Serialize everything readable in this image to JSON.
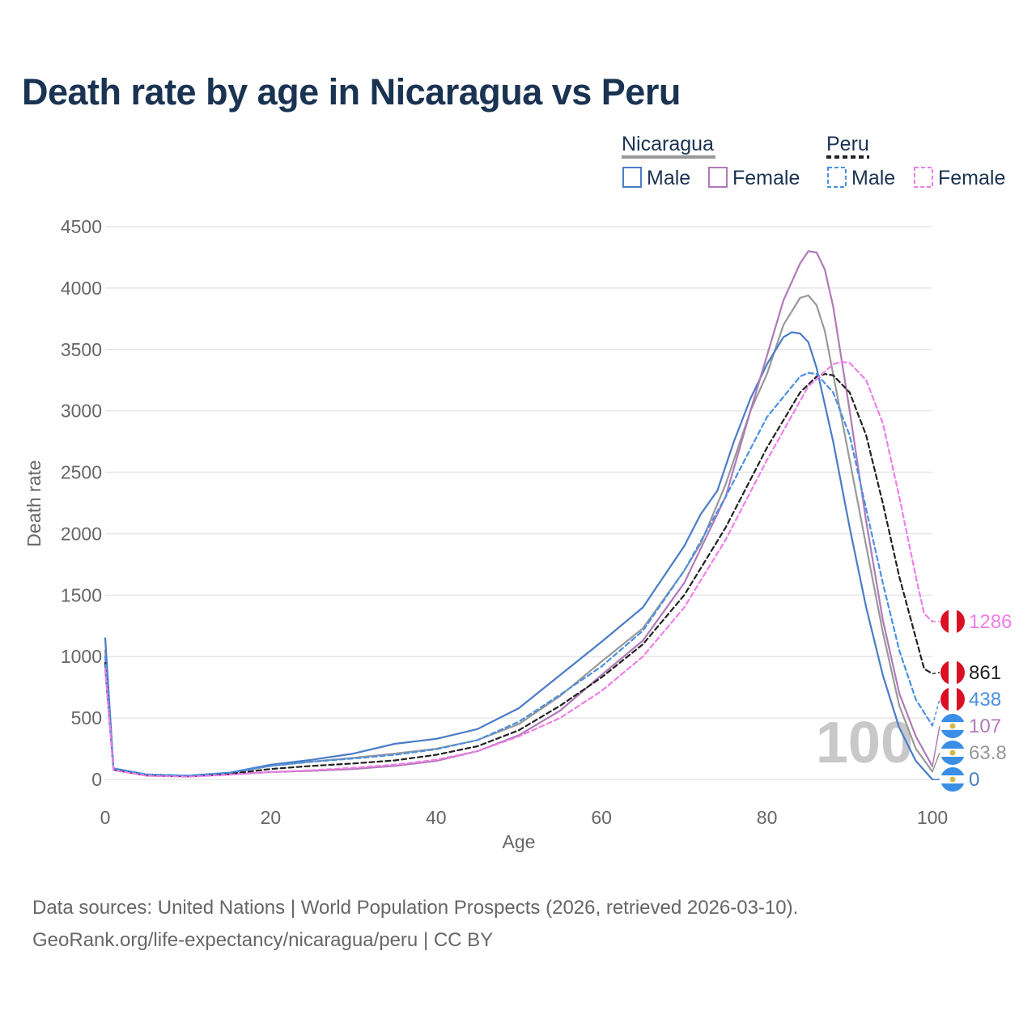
{
  "title": "Death rate by age in Nicaragua vs Peru",
  "footer": {
    "line1": "Data sources: United Nations | World Population Prospects (2026, retrieved 2026-03-10).",
    "line2": "GeoRank.org/life-expectancy/nicaragua/peru | CC BY"
  },
  "legend": {
    "group1": "Nicaragua",
    "group2": "Peru",
    "male": "Male",
    "female": "Female"
  },
  "watermark": "100",
  "colors": {
    "nic_total": "#999999",
    "nic_male": "#4a7cc7",
    "nic_female": "#b07ab8",
    "peru_total": "#222222",
    "peru_male": "#4a90e2",
    "peru_female": "#f07ee8",
    "grid": "#e6e6e6",
    "title": "#1a3352"
  },
  "chart_data": {
    "type": "line",
    "title": "Death rate by age in Nicaragua vs Peru",
    "xlabel": "Age",
    "ylabel": "Death rate",
    "xlim": [
      0,
      100
    ],
    "ylim": [
      0,
      4500
    ],
    "x_ticks": [
      0,
      20,
      40,
      60,
      80,
      100
    ],
    "y_ticks": [
      0,
      500,
      1000,
      1500,
      2000,
      2500,
      3000,
      3500,
      4000,
      4500
    ],
    "series": [
      {
        "name": "Nicaragua",
        "color_key": "nic_total",
        "dash": false,
        "end_label": "63.8",
        "points": [
          [
            0,
            1050
          ],
          [
            1,
            85
          ],
          [
            5,
            35
          ],
          [
            10,
            28
          ],
          [
            15,
            50
          ],
          [
            20,
            110
          ],
          [
            25,
            145
          ],
          [
            30,
            175
          ],
          [
            35,
            210
          ],
          [
            40,
            250
          ],
          [
            45,
            320
          ],
          [
            50,
            450
          ],
          [
            55,
            680
          ],
          [
            60,
            960
          ],
          [
            65,
            1230
          ],
          [
            70,
            1700
          ],
          [
            72,
            1920
          ],
          [
            75,
            2400
          ],
          [
            78,
            3000
          ],
          [
            80,
            3300
          ],
          [
            82,
            3700
          ],
          [
            84,
            3920
          ],
          [
            85,
            3940
          ],
          [
            86,
            3860
          ],
          [
            87,
            3650
          ],
          [
            90,
            2600
          ],
          [
            92,
            1900
          ],
          [
            94,
            1200
          ],
          [
            96,
            600
          ],
          [
            98,
            250
          ],
          [
            100,
            63.8
          ]
        ]
      },
      {
        "name": "Nicaragua Male",
        "color_key": "nic_male",
        "dash": false,
        "end_label": "0",
        "points": [
          [
            0,
            1150
          ],
          [
            1,
            90
          ],
          [
            5,
            40
          ],
          [
            10,
            30
          ],
          [
            15,
            55
          ],
          [
            20,
            120
          ],
          [
            25,
            160
          ],
          [
            30,
            210
          ],
          [
            35,
            290
          ],
          [
            40,
            330
          ],
          [
            45,
            410
          ],
          [
            50,
            580
          ],
          [
            55,
            850
          ],
          [
            60,
            1120
          ],
          [
            65,
            1400
          ],
          [
            70,
            1900
          ],
          [
            72,
            2160
          ],
          [
            74,
            2350
          ],
          [
            76,
            2750
          ],
          [
            78,
            3100
          ],
          [
            80,
            3380
          ],
          [
            82,
            3600
          ],
          [
            83,
            3640
          ],
          [
            84,
            3630
          ],
          [
            85,
            3560
          ],
          [
            86,
            3350
          ],
          [
            88,
            2750
          ],
          [
            90,
            2050
          ],
          [
            92,
            1400
          ],
          [
            94,
            850
          ],
          [
            96,
            420
          ],
          [
            98,
            150
          ],
          [
            100,
            0
          ]
        ]
      },
      {
        "name": "Nicaragua Female",
        "color_key": "nic_female",
        "dash": false,
        "end_label": "107",
        "points": [
          [
            0,
            900
          ],
          [
            1,
            80
          ],
          [
            5,
            30
          ],
          [
            10,
            25
          ],
          [
            15,
            40
          ],
          [
            20,
            60
          ],
          [
            25,
            70
          ],
          [
            30,
            85
          ],
          [
            35,
            110
          ],
          [
            40,
            150
          ],
          [
            45,
            230
          ],
          [
            50,
            360
          ],
          [
            55,
            560
          ],
          [
            60,
            850
          ],
          [
            65,
            1130
          ],
          [
            70,
            1600
          ],
          [
            75,
            2300
          ],
          [
            78,
            3000
          ],
          [
            80,
            3450
          ],
          [
            82,
            3900
          ],
          [
            84,
            4200
          ],
          [
            85,
            4300
          ],
          [
            86,
            4290
          ],
          [
            87,
            4150
          ],
          [
            88,
            3850
          ],
          [
            90,
            3000
          ],
          [
            92,
            2100
          ],
          [
            94,
            1300
          ],
          [
            96,
            700
          ],
          [
            98,
            350
          ],
          [
            100,
            107
          ]
        ]
      },
      {
        "name": "Peru",
        "color_key": "peru_total",
        "dash": true,
        "end_label": "861",
        "points": [
          [
            0,
            950
          ],
          [
            1,
            80
          ],
          [
            5,
            35
          ],
          [
            10,
            25
          ],
          [
            15,
            45
          ],
          [
            20,
            85
          ],
          [
            25,
            110
          ],
          [
            30,
            130
          ],
          [
            35,
            155
          ],
          [
            40,
            200
          ],
          [
            45,
            270
          ],
          [
            50,
            400
          ],
          [
            55,
            600
          ],
          [
            60,
            830
          ],
          [
            65,
            1100
          ],
          [
            70,
            1500
          ],
          [
            75,
            2050
          ],
          [
            80,
            2700
          ],
          [
            84,
            3150
          ],
          [
            86,
            3280
          ],
          [
            87,
            3300
          ],
          [
            88,
            3290
          ],
          [
            90,
            3150
          ],
          [
            92,
            2800
          ],
          [
            94,
            2250
          ],
          [
            96,
            1650
          ],
          [
            98,
            1150
          ],
          [
            99,
            900
          ],
          [
            100,
            861
          ]
        ]
      },
      {
        "name": "Peru Male",
        "color_key": "peru_male",
        "dash": true,
        "end_label": "438",
        "points": [
          [
            0,
            1000
          ],
          [
            1,
            90
          ],
          [
            5,
            40
          ],
          [
            10,
            30
          ],
          [
            15,
            55
          ],
          [
            20,
            110
          ],
          [
            25,
            145
          ],
          [
            30,
            170
          ],
          [
            35,
            200
          ],
          [
            40,
            245
          ],
          [
            45,
            320
          ],
          [
            50,
            470
          ],
          [
            55,
            690
          ],
          [
            60,
            920
          ],
          [
            65,
            1210
          ],
          [
            70,
            1700
          ],
          [
            75,
            2300
          ],
          [
            80,
            2950
          ],
          [
            84,
            3280
          ],
          [
            85,
            3310
          ],
          [
            86,
            3300
          ],
          [
            88,
            3150
          ],
          [
            90,
            2800
          ],
          [
            92,
            2200
          ],
          [
            94,
            1600
          ],
          [
            96,
            1050
          ],
          [
            98,
            650
          ],
          [
            100,
            438
          ]
        ]
      },
      {
        "name": "Peru Female",
        "color_key": "peru_female",
        "dash": true,
        "end_label": "1286",
        "points": [
          [
            0,
            900
          ],
          [
            1,
            75
          ],
          [
            5,
            30
          ],
          [
            10,
            22
          ],
          [
            15,
            38
          ],
          [
            20,
            60
          ],
          [
            25,
            75
          ],
          [
            30,
            95
          ],
          [
            35,
            120
          ],
          [
            40,
            160
          ],
          [
            45,
            230
          ],
          [
            50,
            350
          ],
          [
            55,
            500
          ],
          [
            60,
            720
          ],
          [
            65,
            1000
          ],
          [
            70,
            1400
          ],
          [
            75,
            1950
          ],
          [
            80,
            2600
          ],
          [
            85,
            3200
          ],
          [
            88,
            3380
          ],
          [
            89,
            3400
          ],
          [
            90,
            3390
          ],
          [
            92,
            3250
          ],
          [
            94,
            2900
          ],
          [
            96,
            2300
          ],
          [
            98,
            1650
          ],
          [
            99,
            1350
          ],
          [
            100,
            1286
          ]
        ]
      }
    ]
  }
}
